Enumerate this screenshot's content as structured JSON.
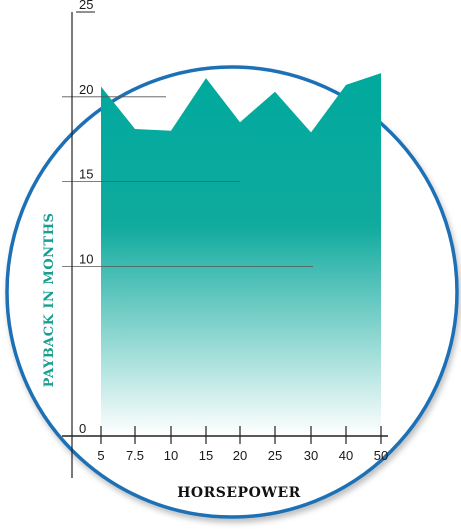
{
  "chart_data": {
    "type": "area",
    "categories": [
      "5",
      "7.5",
      "10",
      "15",
      "20",
      "25",
      "30",
      "40",
      "50"
    ],
    "values": [
      20.6,
      18.1,
      18.0,
      21.1,
      18.5,
      20.3,
      17.9,
      20.7,
      21.4
    ],
    "ylim": [
      0,
      25
    ],
    "yticks": [
      "0",
      "10",
      "15",
      "20",
      "25"
    ],
    "xlabel": "HORSEPOWER",
    "ylabel": "PAYBACK IN MONTHS",
    "grid": true,
    "colors": {
      "fill_top": "#00a99d",
      "fill_bottom": "#ffffff",
      "circle": "#1f6fb5",
      "axis": "#222222",
      "grid": "#555555",
      "ylabel": "#1a9e8f"
    }
  }
}
